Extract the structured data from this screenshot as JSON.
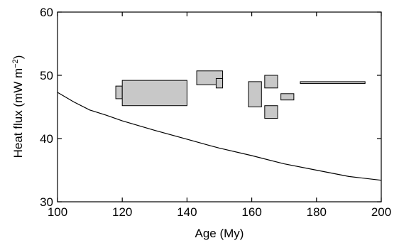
{
  "chart_data": {
    "type": "line",
    "xlabel": "Age (My)",
    "ylabel_main": "Heat flux (mW m",
    "ylabel_exp": "−2",
    "ylabel_close": ")",
    "xlim": [
      100,
      200
    ],
    "ylim": [
      30,
      60
    ],
    "xticks": [
      100,
      120,
      140,
      160,
      180,
      200
    ],
    "yticks": [
      30,
      40,
      50,
      60
    ],
    "grid": false,
    "line": {
      "x": [
        100,
        105,
        110,
        115,
        120,
        130,
        140,
        147,
        150,
        160,
        170,
        180,
        190,
        200
      ],
      "y": [
        47.3,
        45.8,
        44.5,
        43.7,
        42.8,
        41.3,
        39.9,
        38.9,
        38.5,
        37.3,
        36.0,
        35.0,
        34.0,
        33.4
      ]
    },
    "boxes": [
      {
        "x0": 118,
        "x1": 120,
        "y0": 46.3,
        "y1": 48.3
      },
      {
        "x0": 120,
        "x1": 140,
        "y0": 45.2,
        "y1": 49.2
      },
      {
        "x0": 143,
        "x1": 151,
        "y0": 48.5,
        "y1": 50.7
      },
      {
        "x0": 149,
        "x1": 151,
        "y0": 48.0,
        "y1": 49.5
      },
      {
        "x0": 159,
        "x1": 163,
        "y0": 45.0,
        "y1": 49.0
      },
      {
        "x0": 164,
        "x1": 168,
        "y0": 48.0,
        "y1": 50.0
      },
      {
        "x0": 164,
        "x1": 168,
        "y0": 43.2,
        "y1": 45.2
      },
      {
        "x0": 169,
        "x1": 173,
        "y0": 46.1,
        "y1": 47.1
      },
      {
        "x0": 175,
        "x1": 195,
        "y0": 48.7,
        "y1": 49.0
      }
    ],
    "box_color": "#c8c8c8"
  }
}
